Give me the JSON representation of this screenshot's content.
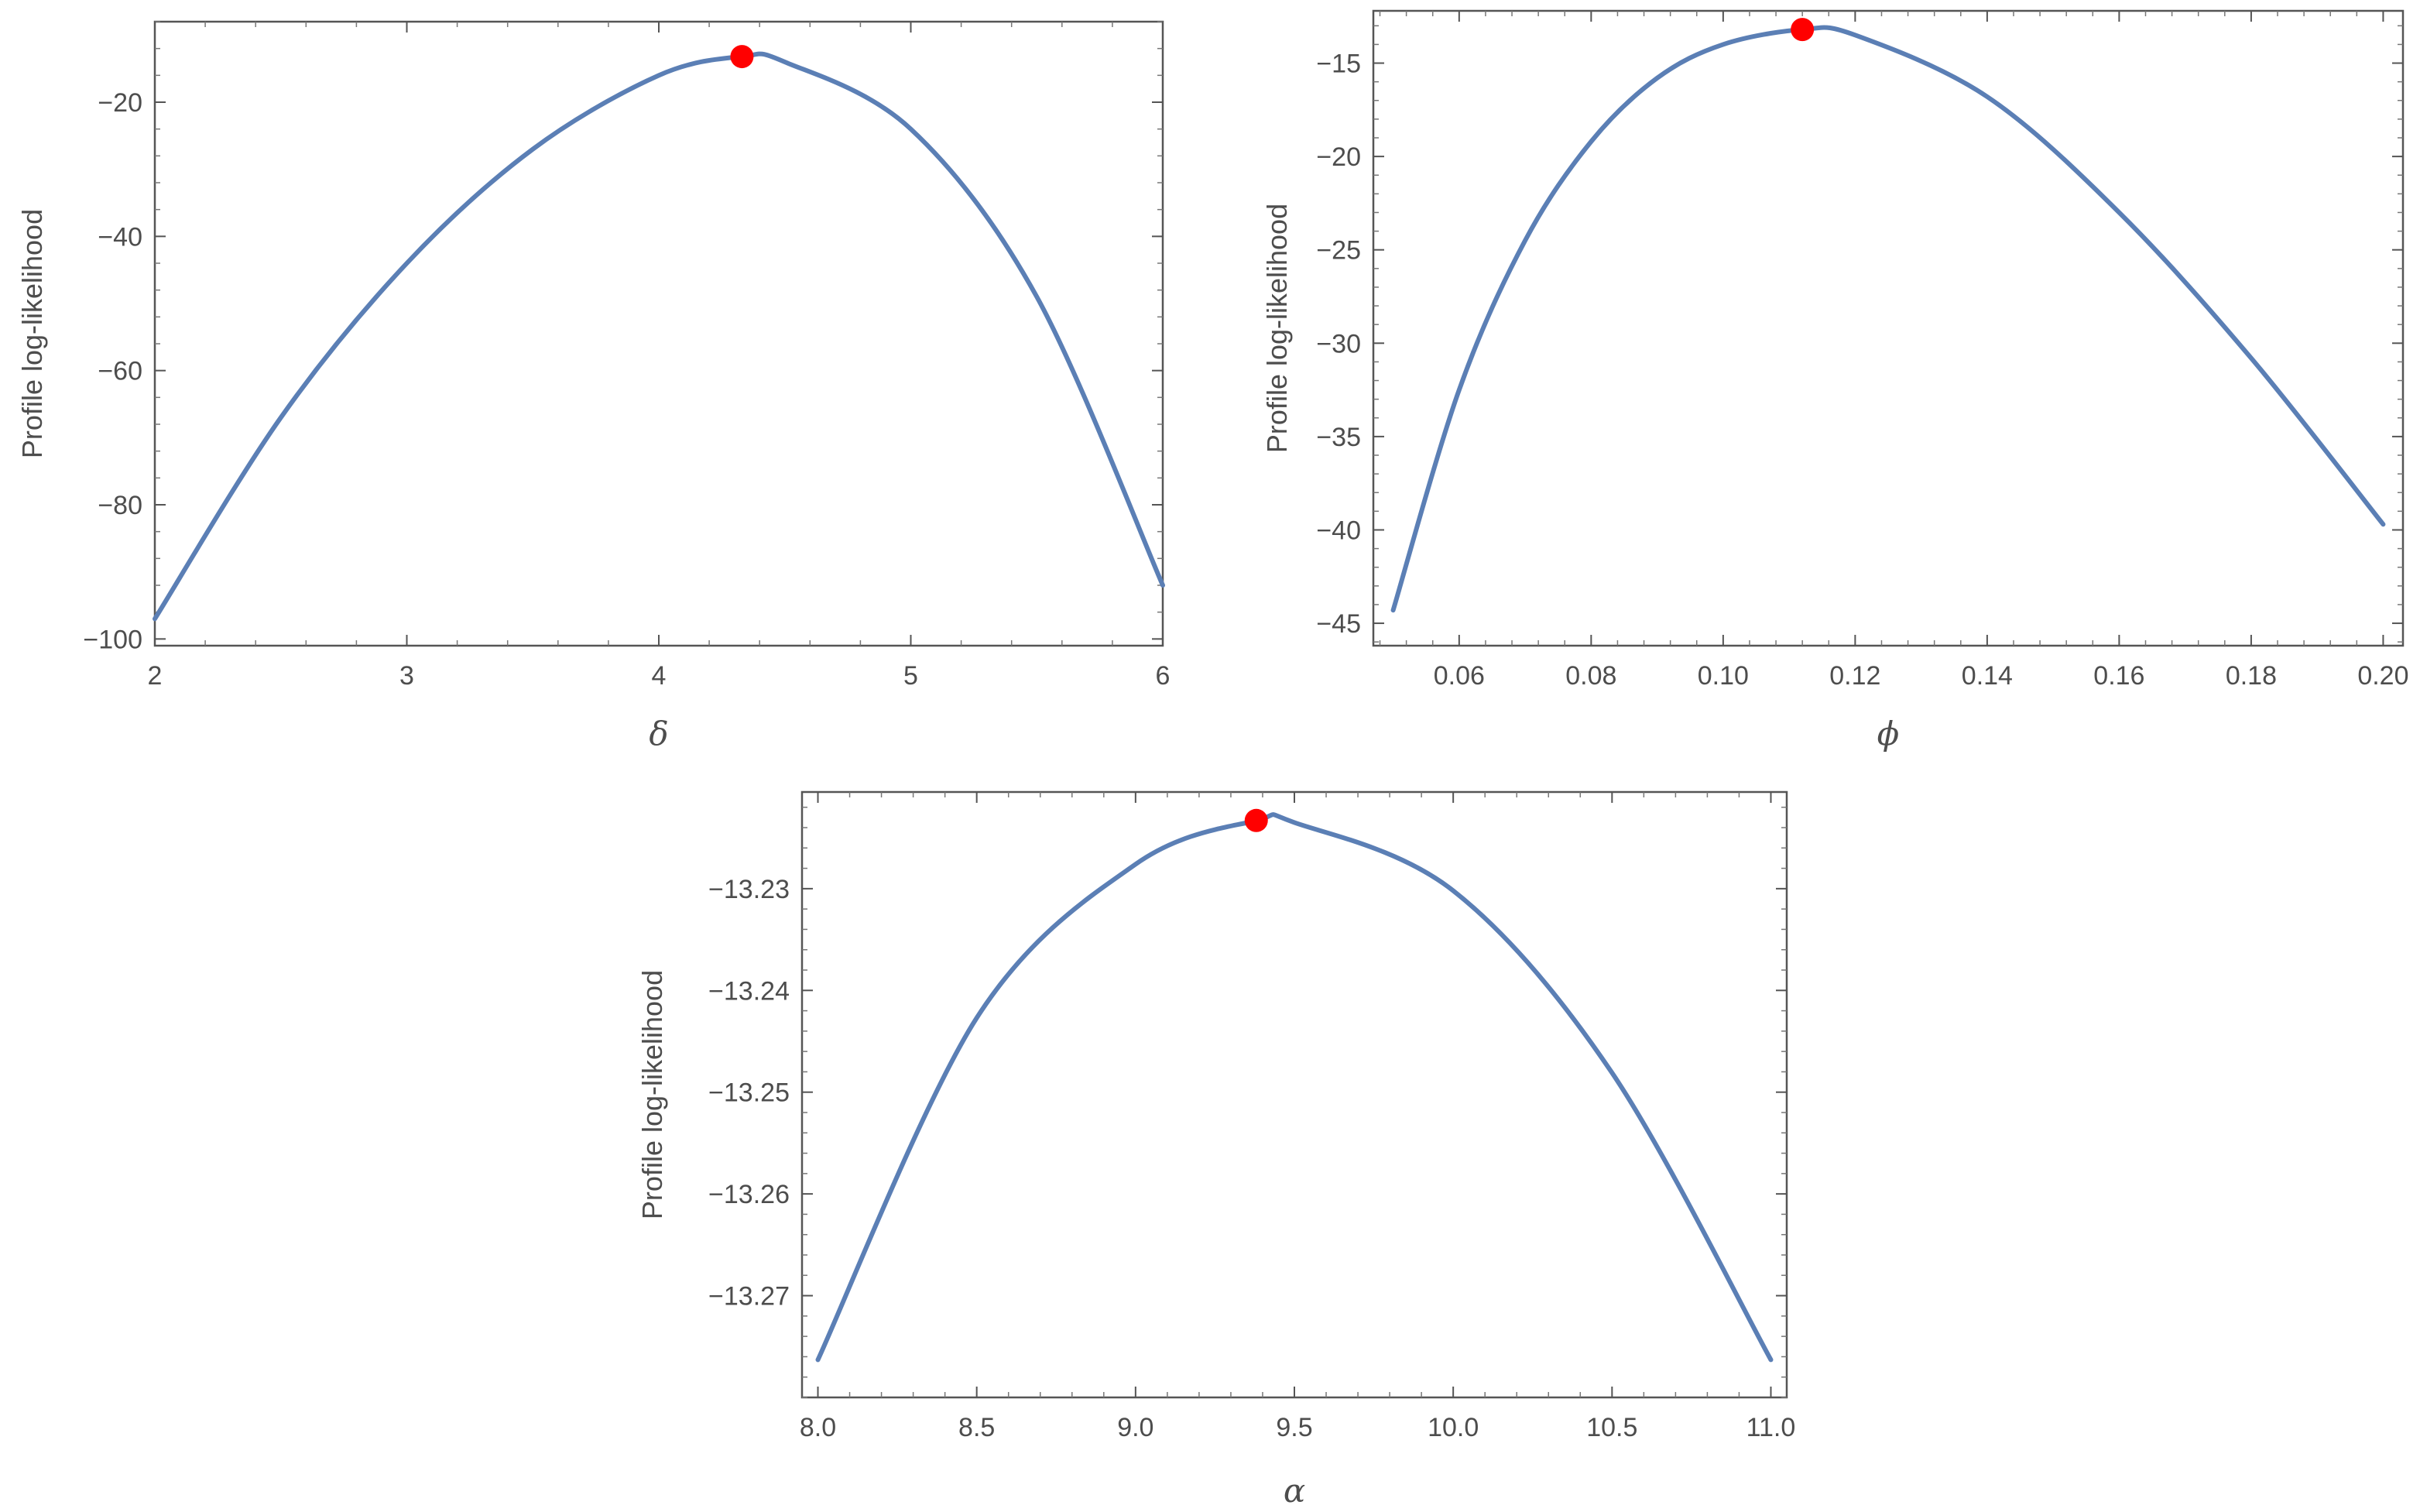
{
  "chart_data": [
    {
      "type": "line",
      "xlabel": "δ",
      "ylabel": "Profile log-likelihood",
      "xlim": [
        2,
        6
      ],
      "ylim": [
        -101,
        -8
      ],
      "xticks": [
        2,
        3,
        4,
        5,
        6
      ],
      "xtick_labels": [
        "2",
        "3",
        "4",
        "5",
        "6"
      ],
      "yticks": [
        -100,
        -80,
        -60,
        -40,
        -20
      ],
      "ytick_labels": [
        "−100",
        "−80",
        "−60",
        "−40",
        "−20"
      ],
      "series": [
        {
          "x": [
            2.0,
            2.5,
            3.0,
            3.5,
            4.0,
            4.33,
            4.5,
            5.0,
            5.5,
            6.0
          ],
          "y": [
            -97,
            -67,
            -44,
            -27,
            -16,
            -13.2,
            -14,
            -24,
            -49,
            -92
          ]
        }
      ],
      "highlight_point": {
        "x": 4.33,
        "y": -13.2
      },
      "colors": {
        "line": "#5b7fb5",
        "point": "#ff0000"
      }
    },
    {
      "type": "line",
      "xlabel": "ϕ",
      "ylabel": "Profile log-likelihood",
      "xlim": [
        0.047,
        0.203
      ],
      "ylim": [
        -46.2,
        -12.2
      ],
      "xticks": [
        0.06,
        0.08,
        0.1,
        0.12,
        0.14,
        0.16,
        0.18,
        0.2
      ],
      "xtick_labels": [
        "0.06",
        "0.08",
        "0.10",
        "0.12",
        "0.14",
        "0.16",
        "0.18",
        "0.20"
      ],
      "yticks": [
        -45,
        -40,
        -35,
        -30,
        -25,
        -20,
        -15
      ],
      "ytick_labels": [
        "−45",
        "−40",
        "−35",
        "−30",
        "−25",
        "−20",
        "−15"
      ],
      "series": [
        {
          "x": [
            0.05,
            0.06,
            0.07,
            0.08,
            0.09,
            0.1,
            0.112,
            0.12,
            0.14,
            0.16,
            0.18,
            0.2
          ],
          "y": [
            -44.3,
            -32.5,
            -24.5,
            -19.2,
            -15.8,
            -14.0,
            -13.2,
            -13.5,
            -16.8,
            -23.0,
            -30.8,
            -39.7
          ]
        }
      ],
      "highlight_point": {
        "x": 0.112,
        "y": -13.2
      },
      "colors": {
        "line": "#5b7fb5",
        "point": "#ff0000"
      }
    },
    {
      "type": "line",
      "xlabel": "α",
      "ylabel": "Profile log-likelihood",
      "xlim": [
        7.95,
        11.05
      ],
      "ylim": [
        -13.28,
        -13.2205
      ],
      "xticks": [
        8.0,
        8.5,
        9.0,
        9.5,
        10.0,
        10.5,
        11.0
      ],
      "xtick_labels": [
        "8.0",
        "8.5",
        "9.0",
        "9.5",
        "10.0",
        "10.5",
        "11.0"
      ],
      "yticks": [
        -13.27,
        -13.26,
        -13.25,
        -13.24,
        -13.23
      ],
      "ytick_labels": [
        "−13.27",
        "−13.26",
        "−13.25",
        "−13.24",
        "−13.23"
      ],
      "series": [
        {
          "x": [
            8.0,
            8.5,
            9.0,
            9.38,
            9.5,
            10.0,
            10.5,
            11.0
          ],
          "y": [
            -13.2763,
            -13.2427,
            -13.2276,
            -13.2233,
            -13.2235,
            -13.2302,
            -13.2481,
            -13.2763
          ]
        }
      ],
      "highlight_point": {
        "x": 9.38,
        "y": -13.2233
      },
      "colors": {
        "line": "#5b7fb5",
        "point": "#ff0000"
      }
    }
  ]
}
